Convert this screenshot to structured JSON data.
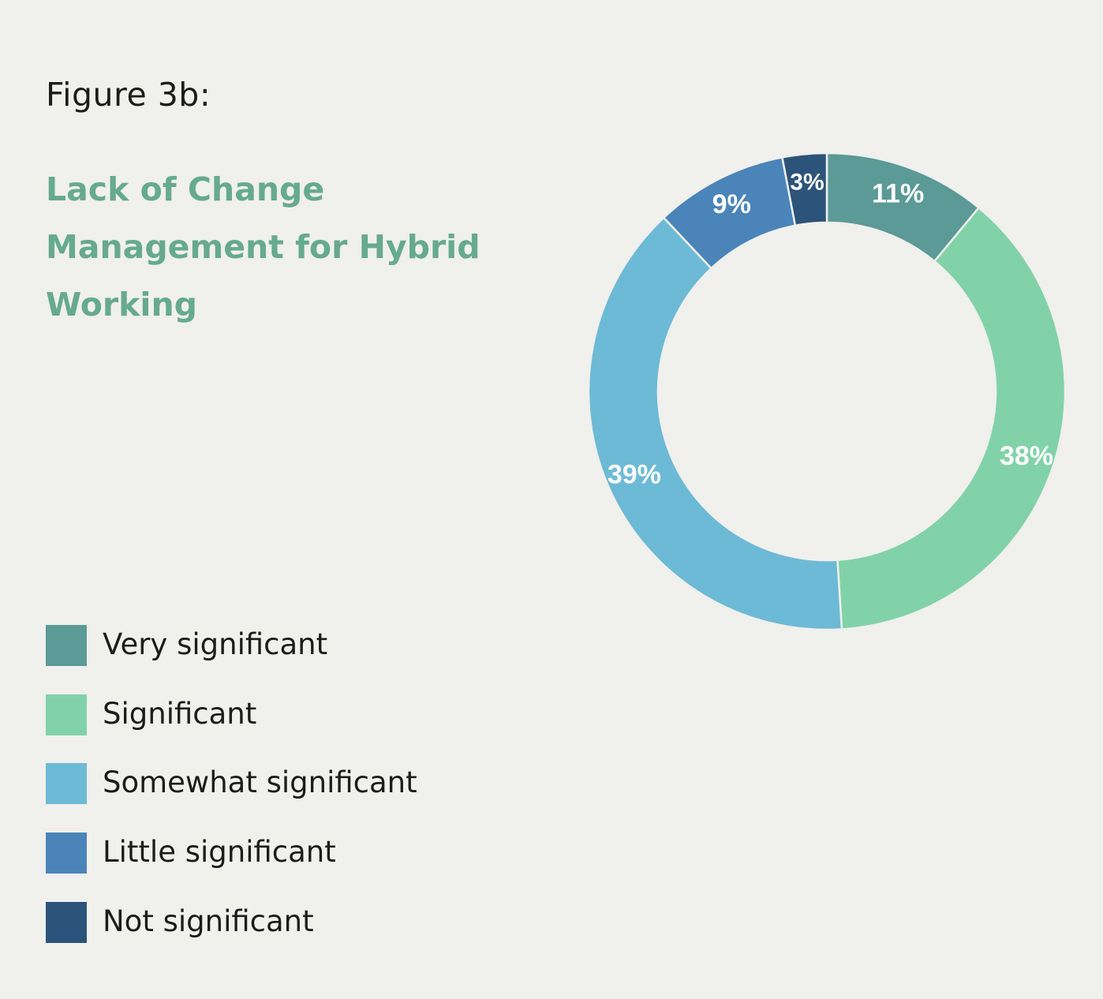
{
  "figure_label": "Figure 3b:",
  "title_lines": [
    "Lack of Change",
    "Management for Hybrid",
    "Working"
  ],
  "chart_data": {
    "type": "pie",
    "subtype": "donut",
    "title": "Lack of Change Management for Hybrid Working",
    "categories": [
      "Very significant",
      "Significant",
      "Somewhat significant",
      "Little significant",
      "Not significant"
    ],
    "values": [
      11,
      38,
      39,
      9,
      3
    ],
    "labels": [
      "11%",
      "38%",
      "39%",
      "9%",
      "3%"
    ],
    "colors": [
      "#5b9a96",
      "#82d2a9",
      "#6dbad6",
      "#4a84b9",
      "#2c5379"
    ],
    "legend_position": "bottom-left"
  }
}
